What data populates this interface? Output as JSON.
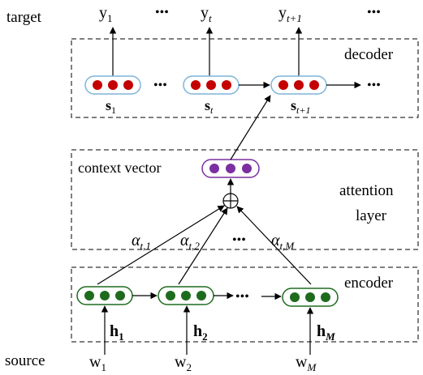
{
  "labels": {
    "target": "target",
    "source": "source",
    "decoder": "decoder",
    "attention_line1": "attention",
    "attention_line2": "layer",
    "encoder": "encoder",
    "context_vector": "context vector",
    "ellipsis": "•••"
  },
  "outputs": {
    "y1": {
      "base": "y",
      "sub": "1"
    },
    "yt": {
      "base": "y",
      "sub": "t"
    },
    "yt1": {
      "base": "y",
      "sub": "t+1"
    }
  },
  "decoder_states": {
    "s1": {
      "base": "s",
      "sub": "1"
    },
    "st": {
      "base": "s",
      "sub": "t"
    },
    "st1": {
      "base": "s",
      "sub": "t+1"
    }
  },
  "attention_weights": {
    "a1": {
      "base": "α",
      "sub": "t,1"
    },
    "a2": {
      "base": "α",
      "sub": "t,2"
    },
    "aM": {
      "base": "α",
      "sub": "t,M"
    }
  },
  "encoder_states": {
    "h1": {
      "base": "h",
      "sub": "1"
    },
    "h2": {
      "base": "h",
      "sub": "2"
    },
    "hM": {
      "base": "h",
      "sub": "M"
    }
  },
  "inputs": {
    "w1": {
      "base": "w",
      "sub": "1"
    },
    "w2": {
      "base": "w",
      "sub": "2"
    },
    "wM": {
      "base": "w",
      "sub": "M"
    }
  },
  "colors": {
    "decoder_node": "#c40000",
    "decoder_box_border": "#7fb4d9",
    "context_node": "#7b2fa0",
    "context_box_border": "#7b2fa0",
    "encoder_node": "#1e6b1e",
    "encoder_box_border": "#1e6b1e",
    "line": "#000000"
  }
}
